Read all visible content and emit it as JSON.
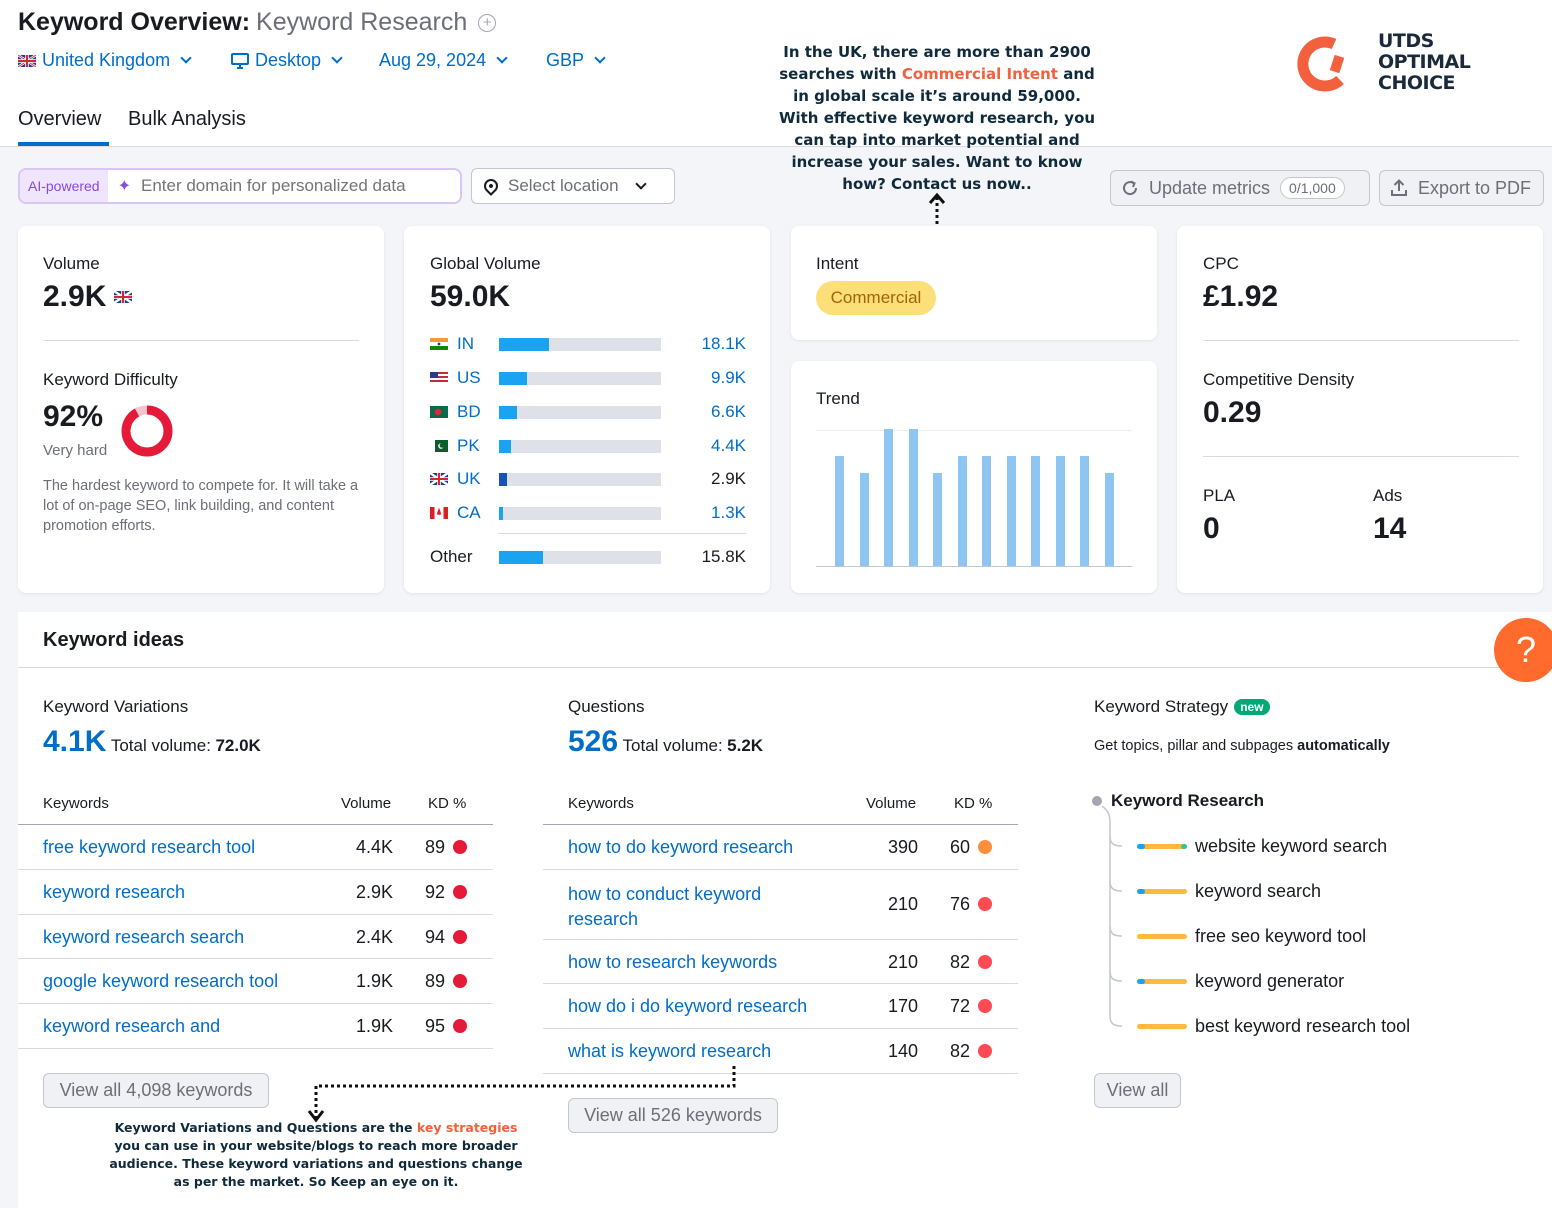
{
  "header": {
    "title": "Keyword Overview:",
    "keyword": "Keyword Research",
    "filters": {
      "country": "United Kingdom",
      "device": "Desktop",
      "date": "Aug 29, 2024",
      "currency": "GBP"
    },
    "tabs": [
      "Overview",
      "Bulk Analysis"
    ]
  },
  "toolbar": {
    "ai_tag": "AI-powered",
    "domain_placeholder": "Enter domain for personalized data",
    "location_placeholder": "Select location",
    "update_label": "Update metrics",
    "update_counter": "0/1,000",
    "export_label": "Export to PDF"
  },
  "brand": {
    "line1": "UTDS",
    "line2": "OPTIMAL",
    "line3": "CHOICE",
    "accent": "#f2603d"
  },
  "annotation_top": {
    "before": "In the UK, there are more than 2900 searches with ",
    "highlight": "Commercial Intent",
    "after": " and in global scale it’s around 59,000. With effective keyword research, you can tap into market potential and increase your sales. Want to know how? Contact us now.."
  },
  "volume": {
    "label": "Volume",
    "value": "2.9K",
    "kd_label": "Keyword Difficulty",
    "kd_value": "92%",
    "kd_percent": 92,
    "kd_level": "Very hard",
    "kd_description": "The hardest keyword to compete for. It will take a lot of on-page SEO, link building, and content promotion efforts."
  },
  "global_volume": {
    "label": "Global Volume",
    "value": "59.0K",
    "countries": [
      {
        "code": "IN",
        "value": "18.1K",
        "share": 0.31
      },
      {
        "code": "US",
        "value": "9.9K",
        "share": 0.17
      },
      {
        "code": "BD",
        "value": "6.6K",
        "share": 0.11
      },
      {
        "code": "PK",
        "value": "4.4K",
        "share": 0.075
      },
      {
        "code": "UK",
        "value": "2.9K",
        "share": 0.05
      },
      {
        "code": "CA",
        "value": "1.3K",
        "share": 0.022
      }
    ],
    "other": {
      "code": "Other",
      "value": "15.8K",
      "share": 0.27
    }
  },
  "intent": {
    "label": "Intent",
    "value": "Commercial"
  },
  "trend": {
    "label": "Trend",
    "values": [
      0.8,
      0.68,
      1.0,
      1.0,
      0.68,
      0.8,
      0.8,
      0.8,
      0.8,
      0.8,
      0.8,
      0.68
    ]
  },
  "cpc": {
    "label": "CPC",
    "value": "£1.92",
    "density_label": "Competitive Density",
    "density_value": "0.29",
    "pla_label": "PLA",
    "pla_value": "0",
    "ads_label": "Ads",
    "ads_value": "14"
  },
  "ideas": {
    "title": "Keyword ideas",
    "variations": {
      "label": "Keyword Variations",
      "count": "4.1K",
      "total_label": "Total volume:",
      "total": "72.0K",
      "columns": [
        "Keywords",
        "Volume",
        "KD %"
      ],
      "rows": [
        {
          "keyword": "free keyword research tool",
          "volume": "4.4K",
          "kd": "89",
          "color": "#e51a39"
        },
        {
          "keyword": "keyword research",
          "volume": "2.9K",
          "kd": "92",
          "color": "#e51a39"
        },
        {
          "keyword": "keyword research search",
          "volume": "2.4K",
          "kd": "94",
          "color": "#e51a39"
        },
        {
          "keyword": "google keyword research tool",
          "volume": "1.9K",
          "kd": "89",
          "color": "#e51a39"
        },
        {
          "keyword": "keyword research and",
          "volume": "1.9K",
          "kd": "95",
          "color": "#e51a39"
        }
      ],
      "view_all": "View all 4,098 keywords"
    },
    "questions": {
      "label": "Questions",
      "count": "526",
      "total_label": "Total volume:",
      "total": "5.2K",
      "columns": [
        "Keywords",
        "Volume",
        "KD %"
      ],
      "rows": [
        {
          "keyword": "how to do keyword research",
          "volume": "390",
          "kd": "60",
          "color": "#ff8f3a"
        },
        {
          "keyword": "how to conduct keyword research",
          "volume": "210",
          "kd": "76",
          "color": "#ff4953"
        },
        {
          "keyword": "how to research keywords",
          "volume": "210",
          "kd": "82",
          "color": "#ff4953"
        },
        {
          "keyword": "how do i do keyword research",
          "volume": "170",
          "kd": "72",
          "color": "#ff4953"
        },
        {
          "keyword": "what is keyword research",
          "volume": "140",
          "kd": "82",
          "color": "#ff4953"
        }
      ],
      "view_all": "View all 526 keywords"
    },
    "strategy": {
      "label": "Keyword Strategy",
      "badge": "new",
      "subtitle_pre": "Get topics, pillar and subpages ",
      "subtitle_bold": "automatically",
      "root": "Keyword Research",
      "children": [
        "website keyword search",
        "keyword search",
        "free seo keyword tool",
        "keyword generator",
        "best keyword research tool"
      ],
      "view_all": "View all"
    }
  },
  "annotation_bottom": {
    "before": "Keyword Variations and Questions are the ",
    "highlight": "key strategies",
    "after": " you can use in your website/blogs to reach more broader audience. These keyword variations and questions change as per the market. So Keep an eye on it."
  },
  "help": {
    "label": "?"
  }
}
